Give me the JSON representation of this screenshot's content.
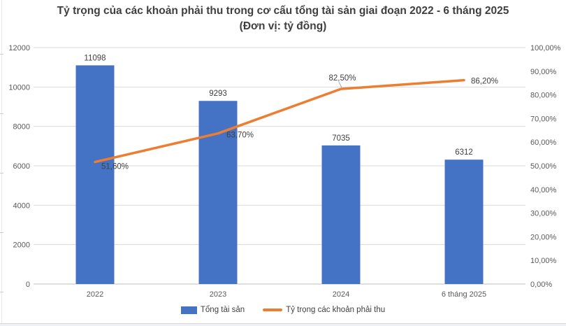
{
  "chart": {
    "title_line1": "Tỷ trọng của các khoản phải thu trong cơ cấu tổng tài sản giai đoạn 2022 - 6 tháng 2025",
    "title_line2": "(Đơn vị: tỷ đồng)"
  },
  "chart_data": {
    "type": "combo",
    "categories": [
      "2022",
      "2023",
      "2024",
      "6 tháng 2025"
    ],
    "series": [
      {
        "name": "Tổng tài sản",
        "type": "bar",
        "axis": "left",
        "color": "#4472C4",
        "values": [
          11098,
          9293,
          7035,
          6312
        ],
        "data_labels": [
          "11098",
          "9293",
          "7035",
          "6312"
        ]
      },
      {
        "name": "Tỷ trọng các khoản phải thu",
        "type": "line",
        "axis": "right",
        "color": "#ED7D31",
        "values": [
          51.6,
          63.7,
          82.5,
          86.2
        ],
        "data_labels": [
          "51,60%",
          "63,70%",
          "82,50%",
          "86,20%"
        ]
      }
    ],
    "left_axis": {
      "min": 0,
      "max": 12000,
      "step": 2000,
      "tick_labels": [
        "0",
        "2000",
        "4000",
        "6000",
        "8000",
        "10000",
        "12000"
      ]
    },
    "right_axis": {
      "min": 0,
      "max": 100,
      "step": 10,
      "tick_labels": [
        "0,00%",
        "10,00%",
        "20,00%",
        "30,00%",
        "40,00%",
        "50,00%",
        "60,00%",
        "70,00%",
        "80,00%",
        "90,00%",
        "100,00%"
      ]
    },
    "grid": true,
    "legend_position": "bottom",
    "colors": {
      "bar": "#4472C4",
      "line": "#ED7D31",
      "gridline": "#d9d9d9",
      "axis_line": "#bfbfbf",
      "tick_text": "#595959",
      "label_text": "#404040"
    }
  }
}
